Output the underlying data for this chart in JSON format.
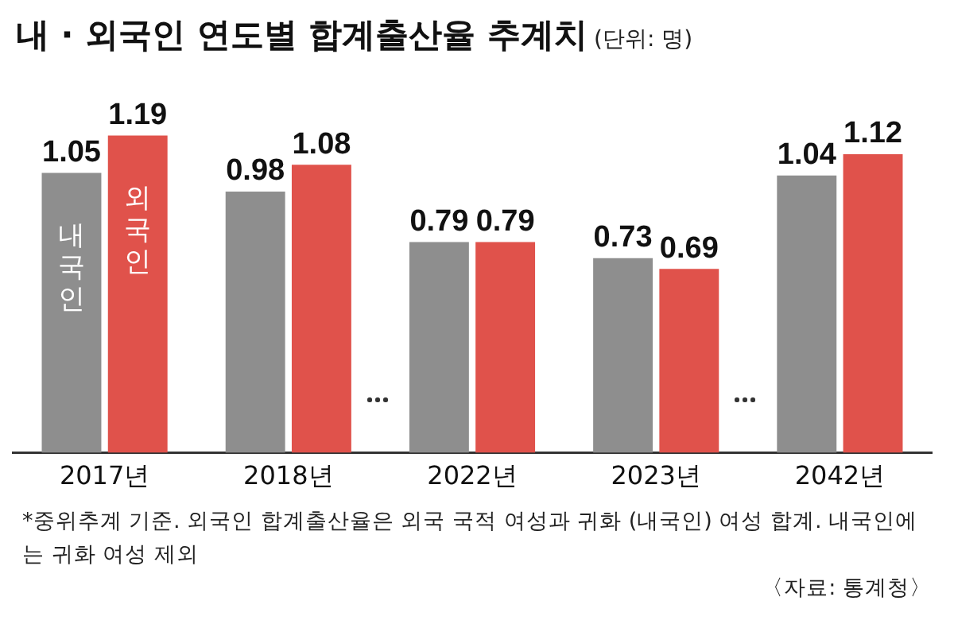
{
  "chart_data": {
    "type": "bar",
    "title": "내 · 외국인 연도별 합계출산율 추계치",
    "subtitle": "(단위: 명)",
    "categories": [
      "2017년",
      "2018년",
      "2022년",
      "2023년",
      "2042년"
    ],
    "series": [
      {
        "name": "내국인",
        "color": "#8e8e8e",
        "values": [
          1.05,
          0.98,
          0.79,
          0.73,
          1.04
        ]
      },
      {
        "name": "외국인",
        "color": "#e0524b",
        "values": [
          1.19,
          1.08,
          0.79,
          0.69,
          1.12
        ]
      }
    ],
    "data_labels": true,
    "legend": false,
    "grid": false,
    "annotations": [
      "*중위추계 기준. 외국인 합계출산율은 외국 국적 여성과 귀화 (내국인) 여성 합계. 내국인에는 귀화 여성 제외",
      "〈자료: 통계청〉"
    ]
  }
}
